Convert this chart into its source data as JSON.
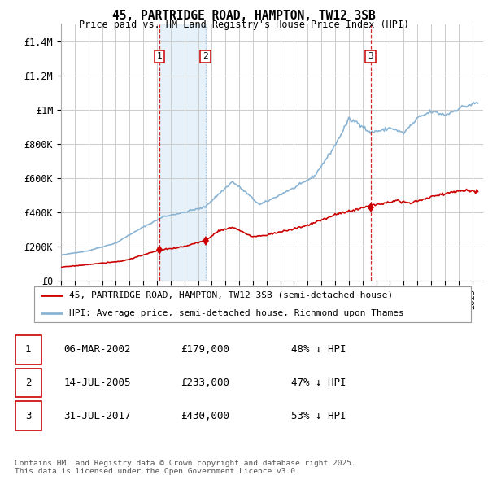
{
  "title_line1": "45, PARTRIDGE ROAD, HAMPTON, TW12 3SB",
  "title_line2": "Price paid vs. HM Land Registry's House Price Index (HPI)",
  "ylim": [
    0,
    1500000
  ],
  "yticks": [
    0,
    200000,
    400000,
    600000,
    800000,
    1000000,
    1200000,
    1400000
  ],
  "ytick_labels": [
    "£0",
    "£200K",
    "£400K",
    "£600K",
    "£800K",
    "£1M",
    "£1.2M",
    "£1.4M"
  ],
  "hpi_color": "#8ab4d4",
  "hpi_fill_color": "#d0e4f4",
  "sale_color": "#cc0000",
  "vline1_color": "#cc0000",
  "vline2_color": "#8ab4d4",
  "vline3_color": "#cc0000",
  "background_color": "#ffffff",
  "grid_color": "#cccccc",
  "legend_label_sale": "45, PARTRIDGE ROAD, HAMPTON, TW12 3SB (semi-detached house)",
  "legend_label_hpi": "HPI: Average price, semi-detached house, Richmond upon Thames",
  "sale_date_nums": [
    2002.167,
    2005.542,
    2017.583
  ],
  "sale_prices": [
    179000,
    233000,
    430000
  ],
  "footnote": "Contains HM Land Registry data © Crown copyright and database right 2025.\nThis data is licensed under the Open Government Licence v3.0.",
  "table_rows": [
    {
      "num": 1,
      "date": "06-MAR-2002",
      "price": "£179,000",
      "hpi": "48% ↓ HPI"
    },
    {
      "num": 2,
      "date": "14-JUL-2005",
      "price": "£233,000",
      "hpi": "47% ↓ HPI"
    },
    {
      "num": 3,
      "date": "31-JUL-2017",
      "price": "£430,000",
      "hpi": "53% ↓ HPI"
    }
  ]
}
